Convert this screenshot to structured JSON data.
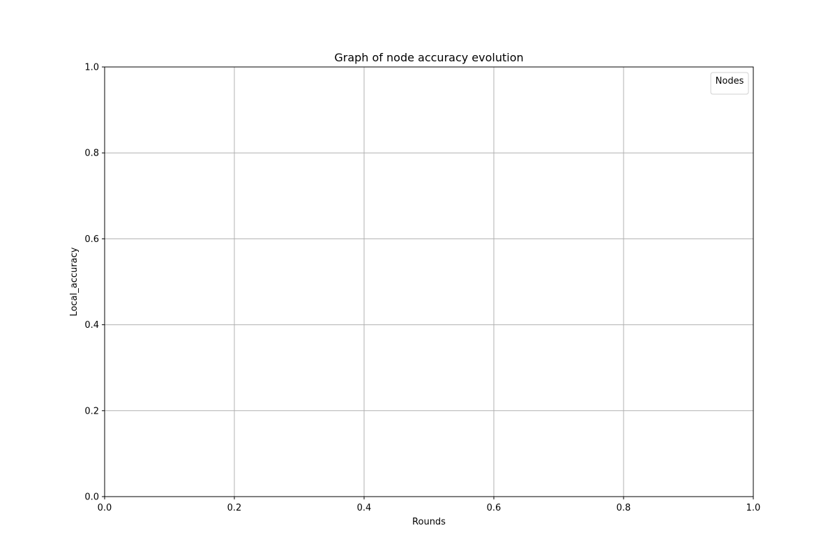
{
  "chart_data": {
    "type": "line",
    "title": "Graph of node accuracy evolution",
    "xlabel": "Rounds",
    "ylabel": "Local_accuracy",
    "xlim": [
      0.0,
      1.0
    ],
    "ylim": [
      0.0,
      1.0
    ],
    "xticks": [
      "0.0",
      "0.2",
      "0.4",
      "0.6",
      "0.8",
      "1.0"
    ],
    "yticks": [
      "0.0",
      "0.2",
      "0.4",
      "0.6",
      "0.8",
      "1.0"
    ],
    "grid": true,
    "legend": {
      "title": "Nodes",
      "placement": "top-right",
      "entries": []
    },
    "series": []
  }
}
